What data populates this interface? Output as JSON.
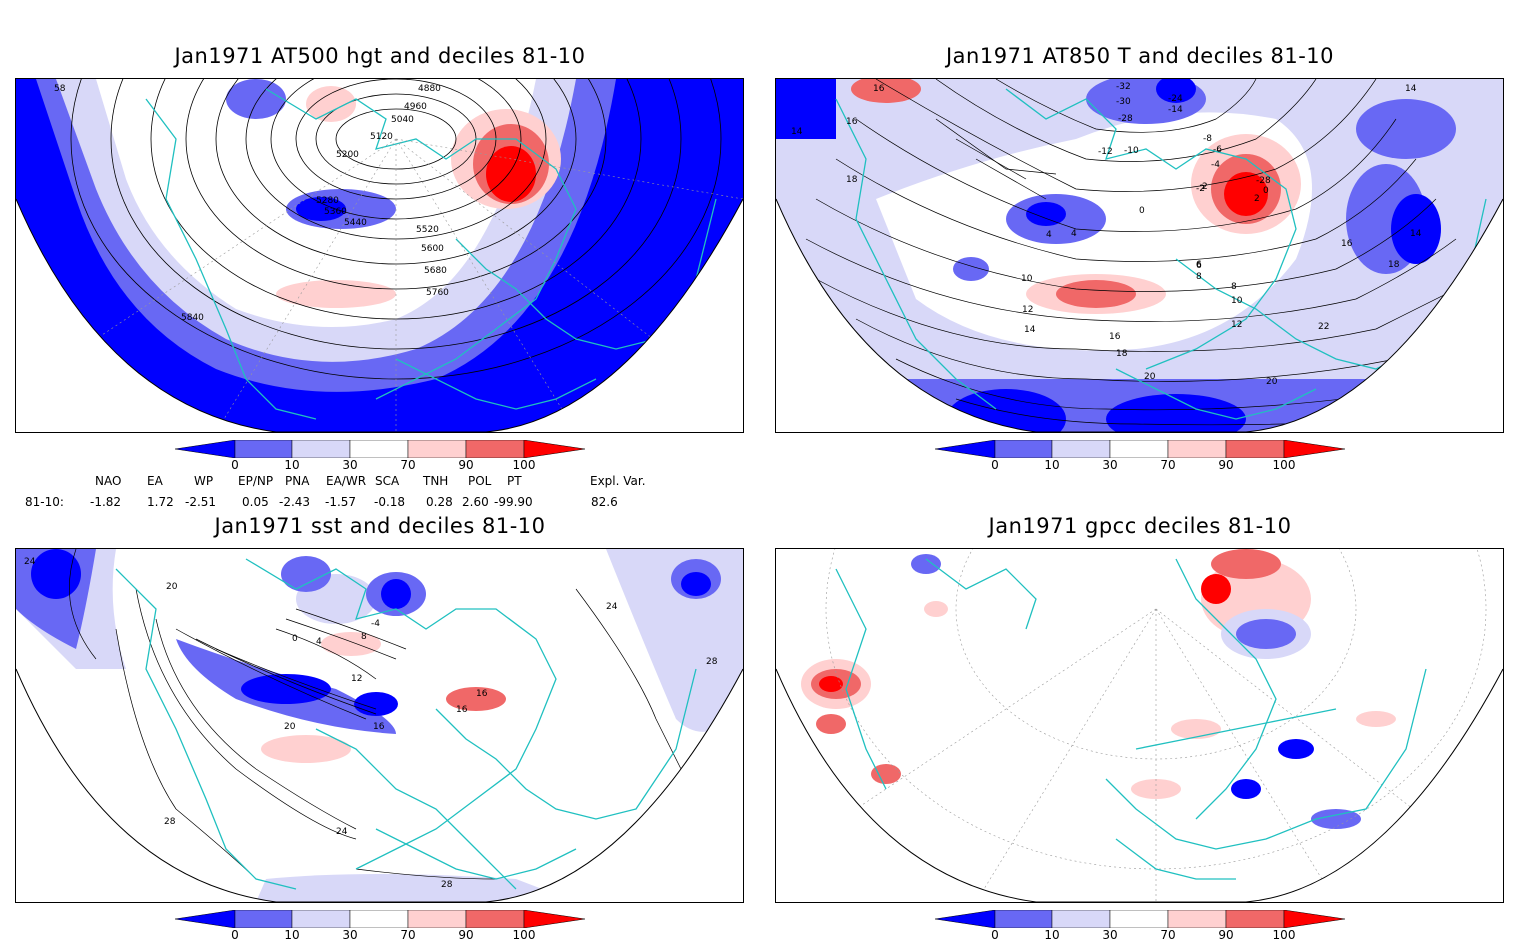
{
  "panels": [
    {
      "title": "Jan1971 AT500 hgt and deciles 81-10",
      "contour_labels": [
        "5840",
        "5760",
        "5680",
        "5600",
        "5520",
        "5440",
        "5360",
        "5280",
        "5200",
        "5120",
        "5040",
        "4960",
        "4880",
        "58"
      ]
    },
    {
      "title": "Jan1971 AT850 T and deciles 81-10",
      "contour_labels": [
        "16",
        "16",
        "14",
        "18",
        "14",
        "18",
        "16",
        "22",
        "20",
        "20",
        "18",
        "16",
        "14",
        "12",
        "10",
        "8",
        "6",
        "4",
        "2",
        "0",
        "-2",
        "-4",
        "-6",
        "-8",
        "-10",
        "-12",
        "-14",
        "-24",
        "-28",
        "-30",
        "-32",
        "-28",
        "0",
        "2",
        "4",
        "6",
        "8",
        "10",
        "12",
        "14",
        "16"
      ]
    },
    {
      "title": "Jan1971 sst and deciles 81-10",
      "contour_labels": [
        "24",
        "20",
        "12",
        "16",
        "20",
        "24",
        "28",
        "28",
        "4",
        "8",
        "16",
        "16",
        "0",
        "-4",
        "24",
        "28"
      ]
    },
    {
      "title": "Jan1971 gpcc deciles 81-10",
      "contour_labels": []
    }
  ],
  "colorbar": {
    "ticks": [
      "0",
      "10",
      "30",
      "70",
      "90",
      "100"
    ],
    "colors": [
      "#0000ff",
      "#6868f4",
      "#d8d8f8",
      "#ffffff",
      "#ffd0d0",
      "#f06868",
      "#ff0000"
    ]
  },
  "indices": {
    "headers": [
      "NAO",
      "EA",
      "WP",
      "EP/NP",
      "PNA",
      "EA/WR",
      "SCA",
      "TNH",
      "POL",
      "PT",
      "Expl. Var."
    ],
    "row_label": "81-10:",
    "values": [
      "-1.82",
      "1.72",
      "-2.51",
      "0.05",
      "-2.43",
      "-1.57",
      "-0.18",
      "0.28",
      "2.60",
      "-99.90",
      "82.6"
    ]
  },
  "colors": {
    "coast": "#20c0c0",
    "grid": "#999999",
    "contour": "#000000"
  }
}
